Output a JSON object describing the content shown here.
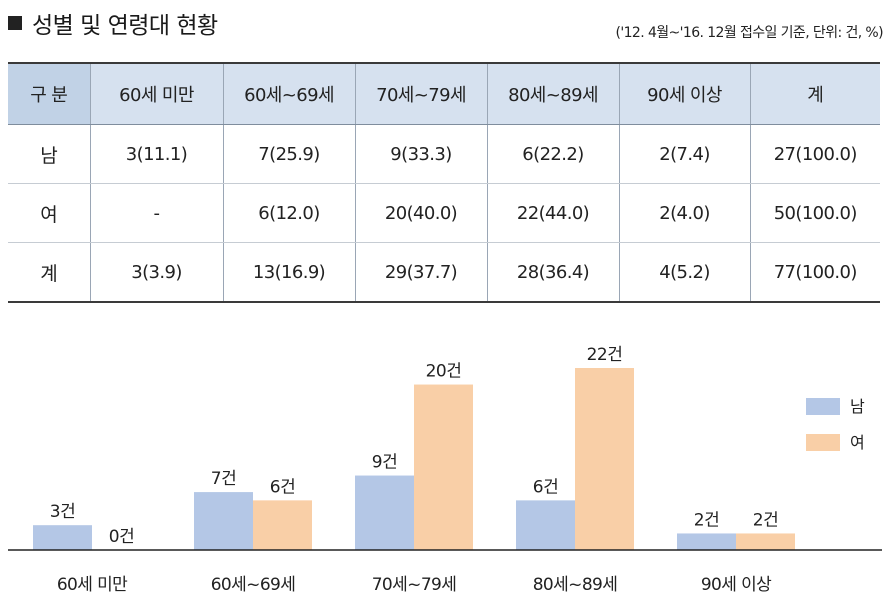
{
  "header": {
    "title": "성별 및 연령대 현황",
    "note": "('12. 4월~'16. 12월 접수일 기준, 단위: 건, %)"
  },
  "table": {
    "headers": [
      "구 분",
      "60세 미만",
      "60세~69세",
      "70세~79세",
      "80세~89세",
      "90세 이상",
      "계"
    ],
    "rows": [
      [
        "남",
        "3(11.1)",
        "7(25.9)",
        "9(33.3)",
        "6(22.2)",
        "2(7.4)",
        "27(100.0)"
      ],
      [
        "여",
        "-",
        "6(12.0)",
        "20(40.0)",
        "22(44.0)",
        "2(4.0)",
        "50(100.0)"
      ],
      [
        "계",
        "3(3.9)",
        "13(16.9)",
        "29(37.7)",
        "28(36.4)",
        "4(5.2)",
        "77(100.0)"
      ]
    ]
  },
  "colors": {
    "male": "#b4c7e6",
    "female": "#f9cfa7",
    "axis": "#222222"
  },
  "chart_data": {
    "type": "bar",
    "categories": [
      "60세 미만",
      "60세~69세",
      "70세~79세",
      "80세~89세",
      "90세 이상"
    ],
    "series": [
      {
        "name": "남",
        "values": [
          3,
          7,
          9,
          6,
          2
        ],
        "labels": [
          "3건",
          "7건",
          "9건",
          "6건",
          "2건"
        ]
      },
      {
        "name": "여",
        "values": [
          0,
          6,
          20,
          22,
          2
        ],
        "labels": [
          "0건",
          "6건",
          "20건",
          "22건",
          "2건"
        ]
      }
    ],
    "ylim": [
      0,
      22
    ],
    "legend": "right",
    "grid": false
  }
}
